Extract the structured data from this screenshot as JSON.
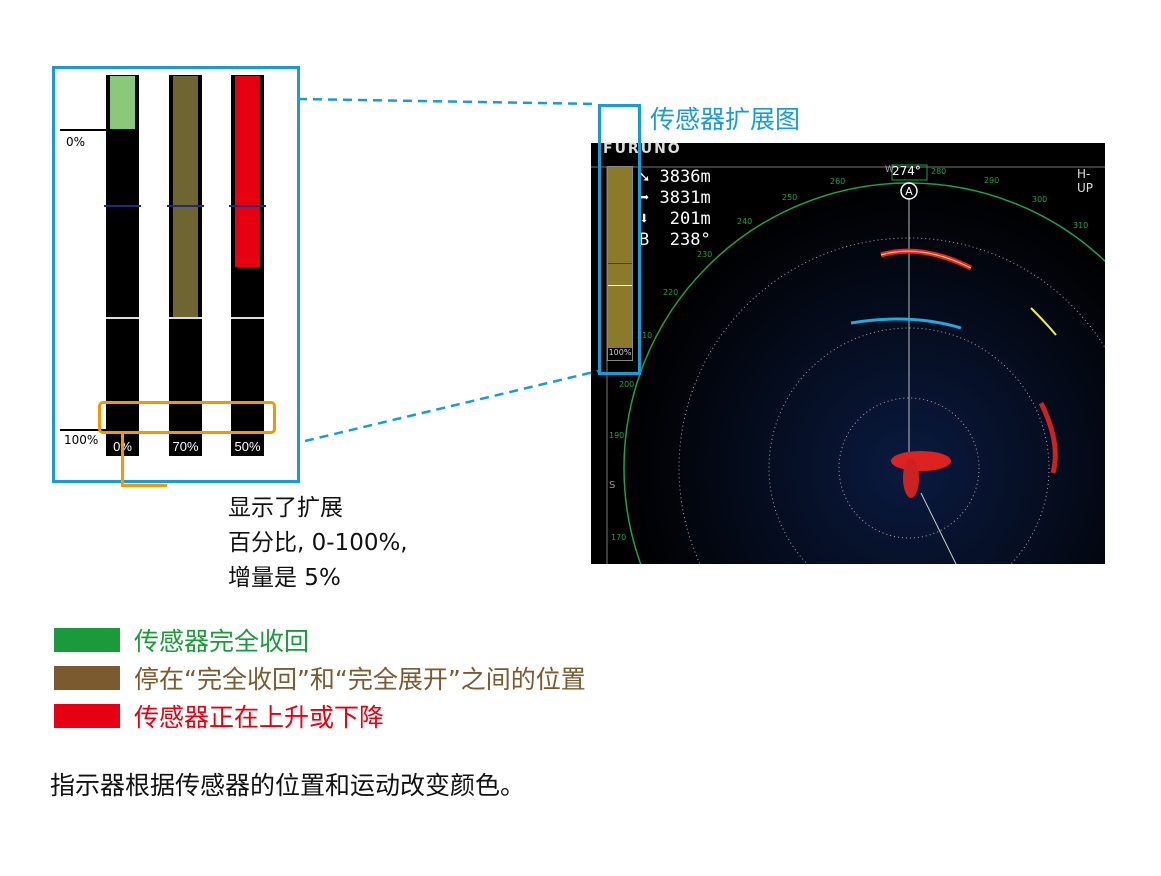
{
  "indicator_detail": {
    "scale_top_label": "0%",
    "scale_bottom_label": "100%",
    "bars": [
      {
        "label": "0%",
        "state": "fully-retracted",
        "fill_color": "#8cc87a",
        "fill_level_percent": 0
      },
      {
        "label": "70%",
        "state": "stopped-between",
        "fill_color": "#6f6530",
        "fill_level_percent": 70
      },
      {
        "label": "50%",
        "state": "moving",
        "fill_color": "#e60012",
        "fill_level_percent": 50
      }
    ]
  },
  "callout": {
    "lines": [
      "显示了扩展",
      "百分比, 0-100%,",
      "增量是 5%"
    ]
  },
  "sonar_screen": {
    "title": "传感器扩展图",
    "brand": "FURUNO",
    "readouts": [
      {
        "icon": "diagonal-arrow-icon",
        "value": "3836m"
      },
      {
        "icon": "right-arrow-icon",
        "value": "3831m"
      },
      {
        "icon": "down-arrow-icon",
        "value": "201m"
      },
      {
        "icon": "B",
        "value": "238°"
      }
    ],
    "heading": "274°",
    "heading_prefix": "W",
    "marker": "A",
    "mode": "H-UP",
    "indicator_label": "100%",
    "bearing_labels": [
      "170",
      "S",
      "190",
      "200",
      "210",
      "220",
      "230",
      "240",
      "250",
      "260",
      "280",
      "290",
      "300",
      "310"
    ]
  },
  "legend": [
    {
      "color": "#1a9a3a",
      "text": "传感器完全收回"
    },
    {
      "color": "#7a5a2e",
      "text": "停在“完全收回”和“完全展开”之间的位置"
    },
    {
      "color": "#e60012",
      "text": "传感器正在上升或下降"
    }
  ],
  "note": "指示器根据传感器的位置和运动改变颜色。"
}
